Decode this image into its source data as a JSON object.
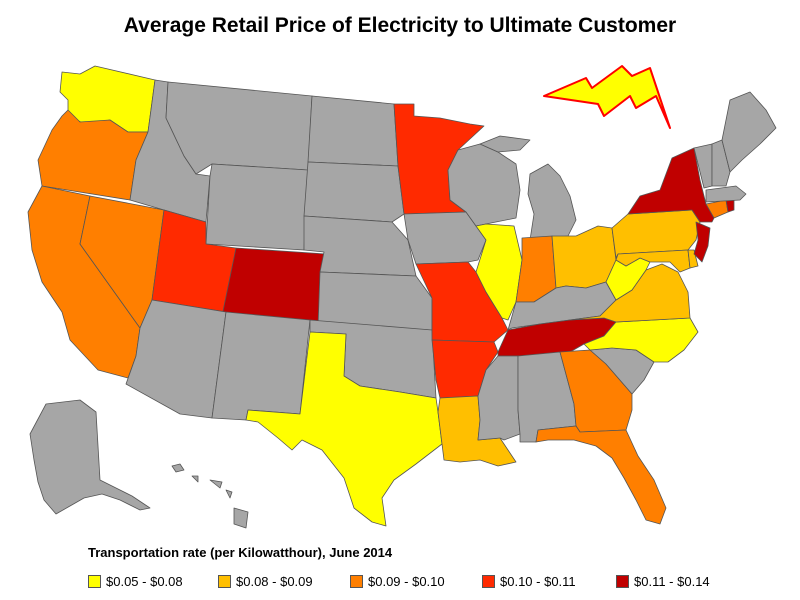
{
  "title": "Average Retail Price of Electricity to Ultimate Customer",
  "legend": {
    "title": "Transportation rate (per Kilowatthour), June 2014",
    "items": [
      {
        "label": "$0.05 - $0.08",
        "color": "#ffff00"
      },
      {
        "label": "$0.08 - $0.09",
        "color": "#ffbf00"
      },
      {
        "label": "$0.09 - $0.10",
        "color": "#ff7f00"
      },
      {
        "label": "$0.10 - $0.11",
        "color": "#ff2a00"
      },
      {
        "label": "$0.11 - $0.14",
        "color": "#c00000"
      }
    ]
  },
  "no_data_color": "#a6a6a6",
  "states": [
    {
      "id": "WA",
      "rate_class": 0
    },
    {
      "id": "OR",
      "rate_class": 2
    },
    {
      "id": "CA",
      "rate_class": 2
    },
    {
      "id": "NV",
      "rate_class": 2
    },
    {
      "id": "UT",
      "rate_class": 3
    },
    {
      "id": "CO",
      "rate_class": 4
    },
    {
      "id": "MN",
      "rate_class": 3
    },
    {
      "id": "MO",
      "rate_class": 3
    },
    {
      "id": "AR",
      "rate_class": 3
    },
    {
      "id": "IL",
      "rate_class": 0
    },
    {
      "id": "IN",
      "rate_class": 2
    },
    {
      "id": "OH",
      "rate_class": 1
    },
    {
      "id": "PA",
      "rate_class": 1
    },
    {
      "id": "NY",
      "rate_class": 4
    },
    {
      "id": "NJ",
      "rate_class": 4
    },
    {
      "id": "CT",
      "rate_class": 2
    },
    {
      "id": "RI",
      "rate_class": 4
    },
    {
      "id": "MD",
      "rate_class": 1
    },
    {
      "id": "DE",
      "rate_class": 1
    },
    {
      "id": "VA",
      "rate_class": 1
    },
    {
      "id": "WV",
      "rate_class": 0
    },
    {
      "id": "NC",
      "rate_class": 0
    },
    {
      "id": "TN",
      "rate_class": 4
    },
    {
      "id": "GA",
      "rate_class": 2
    },
    {
      "id": "FL",
      "rate_class": 2
    },
    {
      "id": "TX",
      "rate_class": 0
    },
    {
      "id": "LA",
      "rate_class": 1
    },
    {
      "id": "ID",
      "rate_class": -1
    },
    {
      "id": "MT",
      "rate_class": -1
    },
    {
      "id": "WY",
      "rate_class": -1
    },
    {
      "id": "ND",
      "rate_class": -1
    },
    {
      "id": "SD",
      "rate_class": -1
    },
    {
      "id": "NE",
      "rate_class": -1
    },
    {
      "id": "KS",
      "rate_class": -1
    },
    {
      "id": "OK",
      "rate_class": -1
    },
    {
      "id": "NM",
      "rate_class": -1
    },
    {
      "id": "AZ",
      "rate_class": -1
    },
    {
      "id": "IA",
      "rate_class": -1
    },
    {
      "id": "WI",
      "rate_class": -1
    },
    {
      "id": "MI",
      "rate_class": -1
    },
    {
      "id": "KY",
      "rate_class": -1
    },
    {
      "id": "MS",
      "rate_class": -1
    },
    {
      "id": "AL",
      "rate_class": -1
    },
    {
      "id": "SC",
      "rate_class": -1
    },
    {
      "id": "ME",
      "rate_class": -1
    },
    {
      "id": "NH",
      "rate_class": -1
    },
    {
      "id": "VT",
      "rate_class": -1
    },
    {
      "id": "MA",
      "rate_class": -1
    },
    {
      "id": "AK",
      "rate_class": -1
    },
    {
      "id": "HI",
      "rate_class": -1
    }
  ]
}
